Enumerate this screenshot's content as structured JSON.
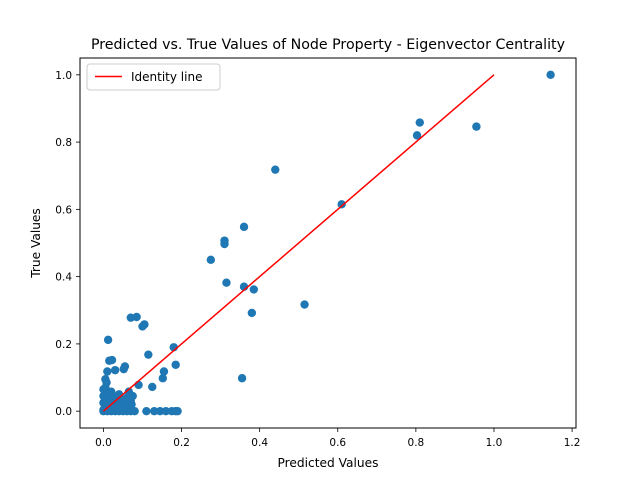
{
  "chart_data": {
    "type": "scatter",
    "title": "Predicted vs. True Values of Node Property - Eigenvector Centrality",
    "xlabel": "Predicted Values",
    "ylabel": "True Values",
    "xlim": [
      -0.06,
      1.21
    ],
    "ylim": [
      -0.05,
      1.05
    ],
    "xticks": [
      0.0,
      0.2,
      0.4,
      0.6,
      0.8,
      1.0,
      1.2
    ],
    "xtick_labels": [
      "0.0",
      "0.2",
      "0.4",
      "0.6",
      "0.8",
      "1.0",
      "1.2"
    ],
    "yticks": [
      0.0,
      0.2,
      0.4,
      0.6,
      0.8,
      1.0
    ],
    "ytick_labels": [
      "0.0",
      "0.2",
      "0.4",
      "0.6",
      "0.8",
      "1.0"
    ],
    "grid": false,
    "legend": {
      "location": "upper-left",
      "entries": [
        "Identity line"
      ]
    },
    "series": [
      {
        "kind": "scatter",
        "color": "#1f77b4",
        "points": [
          [
            1.145,
            1.0
          ],
          [
            0.81,
            0.858
          ],
          [
            0.803,
            0.82
          ],
          [
            0.955,
            0.846
          ],
          [
            0.44,
            0.718
          ],
          [
            0.61,
            0.615
          ],
          [
            0.36,
            0.548
          ],
          [
            0.31,
            0.507
          ],
          [
            0.31,
            0.497
          ],
          [
            0.275,
            0.45
          ],
          [
            0.315,
            0.382
          ],
          [
            0.36,
            0.37
          ],
          [
            0.385,
            0.362
          ],
          [
            0.515,
            0.317
          ],
          [
            0.38,
            0.292
          ],
          [
            0.355,
            0.098
          ],
          [
            0.07,
            0.278
          ],
          [
            0.085,
            0.28
          ],
          [
            0.105,
            0.258
          ],
          [
            0.1,
            0.252
          ],
          [
            0.012,
            0.212
          ],
          [
            0.18,
            0.19
          ],
          [
            0.115,
            0.168
          ],
          [
            0.015,
            0.15
          ],
          [
            0.022,
            0.152
          ],
          [
            0.185,
            0.138
          ],
          [
            0.055,
            0.133
          ],
          [
            0.052,
            0.125
          ],
          [
            0.03,
            0.122
          ],
          [
            0.01,
            0.118
          ],
          [
            0.155,
            0.118
          ],
          [
            0.152,
            0.098
          ],
          [
            0.005,
            0.095
          ],
          [
            0.008,
            0.085
          ],
          [
            0.09,
            0.078
          ],
          [
            0.125,
            0.072
          ],
          [
            0.005,
            0.07
          ],
          [
            0.0,
            0.065
          ],
          [
            0.065,
            0.058
          ],
          [
            0.02,
            0.058
          ],
          [
            0.01,
            0.055
          ],
          [
            0.04,
            0.05
          ],
          [
            0.075,
            0.045
          ],
          [
            0.0,
            0.045
          ],
          [
            0.03,
            0.042
          ],
          [
            0.06,
            0.04
          ],
          [
            0.005,
            0.038
          ],
          [
            0.05,
            0.035
          ],
          [
            0.015,
            0.032
          ],
          [
            0.07,
            0.03
          ],
          [
            0.035,
            0.028
          ],
          [
            0.0,
            0.025
          ],
          [
            0.045,
            0.022
          ],
          [
            0.025,
            0.02
          ],
          [
            0.06,
            0.018
          ],
          [
            0.01,
            0.015
          ],
          [
            0.055,
            0.012
          ],
          [
            0.02,
            0.01
          ],
          [
            0.04,
            0.008
          ],
          [
            0.005,
            0.006
          ],
          [
            0.0,
            0.004
          ],
          [
            0.03,
            0.003
          ],
          [
            0.065,
            0.003
          ],
          [
            0.0,
            0.0
          ],
          [
            0.01,
            0.0
          ],
          [
            0.02,
            0.0
          ],
          [
            0.03,
            0.0
          ],
          [
            0.04,
            0.0
          ],
          [
            0.05,
            0.0
          ],
          [
            0.06,
            0.0
          ],
          [
            0.07,
            0.0
          ],
          [
            0.08,
            0.0
          ],
          [
            0.11,
            0.0
          ],
          [
            0.13,
            0.0
          ],
          [
            0.145,
            0.0
          ],
          [
            0.16,
            0.0
          ],
          [
            0.175,
            0.0
          ],
          [
            0.185,
            0.0
          ],
          [
            0.19,
            0.0
          ],
          [
            0.015,
            0.05
          ],
          [
            0.025,
            0.035
          ],
          [
            0.045,
            0.015
          ],
          [
            0.072,
            0.02
          ],
          [
            0.008,
            0.028
          ]
        ]
      },
      {
        "kind": "line",
        "name": "Identity line",
        "color": "#ff0000",
        "x": [
          0.0,
          1.0
        ],
        "y": [
          0.0,
          1.0
        ]
      }
    ]
  }
}
